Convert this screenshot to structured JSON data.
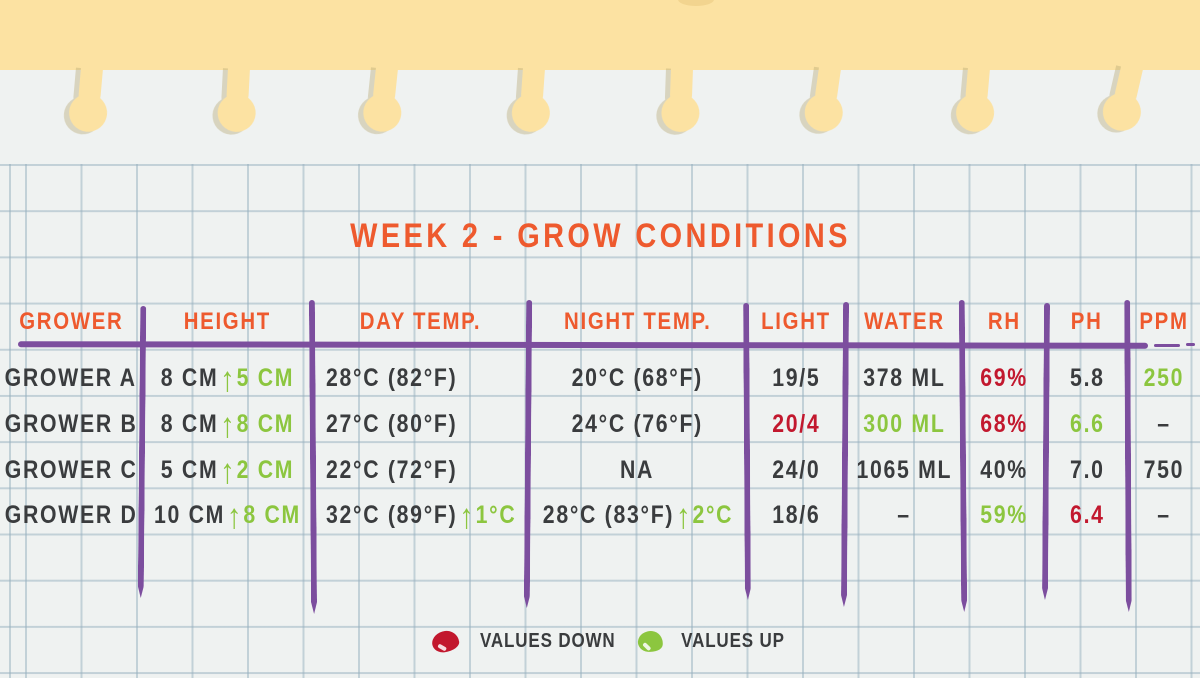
{
  "title": "WEEK 2 - GROW CONDITIONS",
  "colors": {
    "orange": "#EE5A2E",
    "purple": "#7C4E9E",
    "green": "#8CC63F",
    "red": "#C2182E",
    "dark": "#3A3C3E",
    "paper": "#EFF2F1",
    "notebook_yellow": "#FCE2A2",
    "grid_line": "rgba(150,175,190,0.5)"
  },
  "chart_data": {
    "type": "table",
    "title": "WEEK 2 - GROW CONDITIONS",
    "columns": [
      "GROWER",
      "HEIGHT",
      "DAY TEMP.",
      "NIGHT TEMP.",
      "LIGHT",
      "WATER",
      "RH",
      "PH",
      "PPM"
    ],
    "rows": [
      {
        "cells": [
          {
            "text": "GROWER A",
            "color": "dark"
          },
          {
            "text": "8 CM",
            "color": "dark",
            "arrow": "up",
            "delta": "5 CM"
          },
          {
            "text": "28°C (82°F)",
            "color": "dark"
          },
          {
            "text": "20°C (68°F)",
            "color": "dark"
          },
          {
            "text": "19/5",
            "color": "dark"
          },
          {
            "text": "378 ML",
            "color": "dark"
          },
          {
            "text": "69%",
            "color": "red"
          },
          {
            "text": "5.8",
            "color": "dark"
          },
          {
            "text": "250",
            "color": "green"
          }
        ]
      },
      {
        "cells": [
          {
            "text": "GROWER B",
            "color": "dark"
          },
          {
            "text": "8 CM",
            "color": "dark",
            "arrow": "up",
            "delta": "8 CM"
          },
          {
            "text": "27°C (80°F)",
            "color": "dark"
          },
          {
            "text": "24°C (76°F)",
            "color": "dark"
          },
          {
            "text": "20/4",
            "color": "red"
          },
          {
            "text": "300 ML",
            "color": "green"
          },
          {
            "text": "68%",
            "color": "red"
          },
          {
            "text": "6.6",
            "color": "green"
          },
          {
            "text": "–",
            "color": "dark"
          }
        ]
      },
      {
        "cells": [
          {
            "text": "GROWER C",
            "color": "dark"
          },
          {
            "text": "5 CM",
            "color": "dark",
            "arrow": "up",
            "delta": "2 CM"
          },
          {
            "text": "22°C (72°F)",
            "color": "dark"
          },
          {
            "text": "NA",
            "color": "dark"
          },
          {
            "text": "24/0",
            "color": "dark"
          },
          {
            "text": "1065 ML",
            "color": "dark"
          },
          {
            "text": "40%",
            "color": "dark"
          },
          {
            "text": "7.0",
            "color": "dark"
          },
          {
            "text": "750",
            "color": "dark"
          }
        ]
      },
      {
        "cells": [
          {
            "text": "GROWER D",
            "color": "dark"
          },
          {
            "text": "10 CM",
            "color": "dark",
            "arrow": "up",
            "delta": "8 CM"
          },
          {
            "text": "32°C (89°F)",
            "color": "dark",
            "arrow": "up",
            "delta": "1°C"
          },
          {
            "text": "28°C (83°F)",
            "color": "dark",
            "arrow": "up",
            "delta": "2°C"
          },
          {
            "text": "18/6",
            "color": "dark"
          },
          {
            "text": "–",
            "color": "dark"
          },
          {
            "text": "59%",
            "color": "green"
          },
          {
            "text": "6.4",
            "color": "red"
          },
          {
            "text": "–",
            "color": "dark"
          }
        ]
      }
    ],
    "legend": [
      {
        "color": "red",
        "label": "VALUES DOWN"
      },
      {
        "color": "green",
        "label": "VALUES UP"
      }
    ],
    "notes": "up arrows mark increases; green = values up, red = values down"
  }
}
